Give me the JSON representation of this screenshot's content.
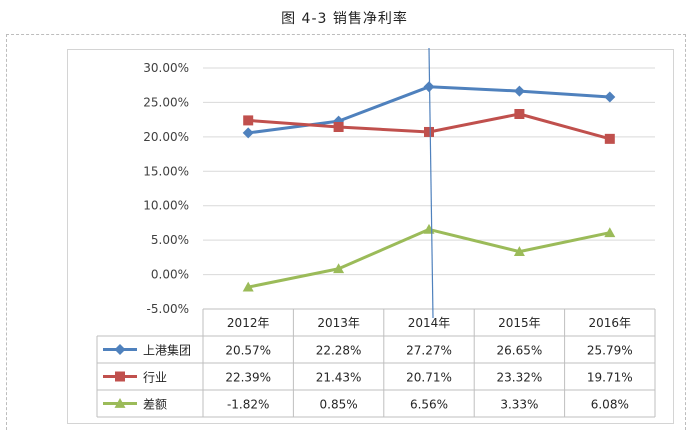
{
  "caption": "图 4-3  销售净利率",
  "chart_data": {
    "type": "line",
    "title": "图 4-3  销售净利率",
    "categories": [
      "2012年",
      "2013年",
      "2014年",
      "2015年",
      "2016年"
    ],
    "ylim": [
      -5,
      30
    ],
    "yticks": [
      "-5.00%",
      "0.00%",
      "5.00%",
      "10.00%",
      "15.00%",
      "20.00%",
      "25.00%",
      "30.00%"
    ],
    "series": [
      {
        "name": "上港集团",
        "values": [
          20.57,
          22.28,
          27.27,
          26.65,
          25.79
        ],
        "labels": [
          "20.57%",
          "22.28%",
          "27.27%",
          "26.65%",
          "25.79%"
        ],
        "color": "#4f81bd",
        "marker": "diamond"
      },
      {
        "name": "行业",
        "values": [
          22.39,
          21.43,
          20.71,
          23.32,
          19.71
        ],
        "labels": [
          "22.39%",
          "21.43%",
          "20.71%",
          "23.32%",
          "19.71%"
        ],
        "color": "#c0504d",
        "marker": "square"
      },
      {
        "name": "差额",
        "values": [
          -1.82,
          0.85,
          6.56,
          3.33,
          6.08
        ],
        "labels": [
          "-1.82%",
          "0.85%",
          "6.56%",
          "3.33%",
          "6.08%"
        ],
        "color": "#9bbb59",
        "marker": "triangle"
      }
    ],
    "grid": true,
    "legend": "data-table"
  }
}
